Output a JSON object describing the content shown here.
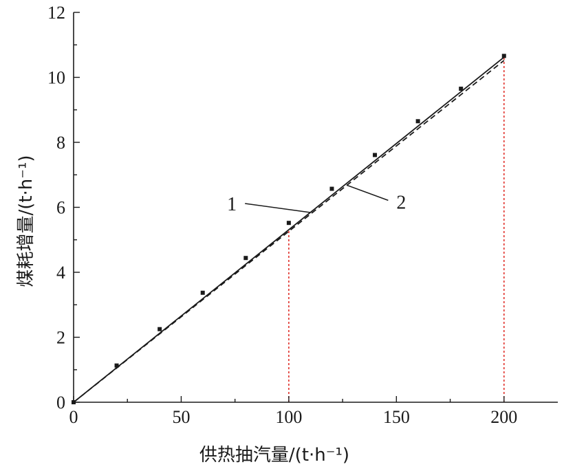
{
  "chart_data": {
    "type": "line",
    "title": "",
    "xlabel": "供热抽汽量/(t·h⁻¹)",
    "ylabel": "煤耗增量/(t·h⁻¹)",
    "xlim": [
      0,
      225
    ],
    "ylim": [
      0,
      12
    ],
    "x_ticks": [
      0,
      50,
      100,
      150,
      200
    ],
    "y_ticks": [
      0,
      2,
      4,
      6,
      8,
      10,
      12
    ],
    "x_minor_step": 25,
    "y_minor_step": 1,
    "grid": false,
    "series": [
      {
        "name": "1",
        "style": "solid",
        "color": "#1a1a1a",
        "points": [
          [
            0,
            0
          ],
          [
            200,
            10.62
          ]
        ]
      },
      {
        "name": "2",
        "style": "dashed",
        "color": "#1a1a1a",
        "points": [
          [
            0,
            0
          ],
          [
            200,
            10.52
          ]
        ]
      }
    ],
    "markers": {
      "color": "#1a1a1a",
      "x": [
        0,
        20,
        40,
        60,
        80,
        100,
        120,
        140,
        160,
        180,
        200
      ],
      "y": [
        0,
        1.13,
        2.25,
        3.37,
        4.44,
        5.52,
        6.57,
        7.61,
        8.65,
        9.65,
        10.66
      ]
    },
    "reference_lines": {
      "color": "#e0302a",
      "x": [
        100,
        200
      ]
    },
    "annotations": [
      {
        "text": "1",
        "series": 0,
        "anchor_x": 110
      },
      {
        "text": "2",
        "series": 1,
        "anchor_x": 127
      }
    ]
  }
}
